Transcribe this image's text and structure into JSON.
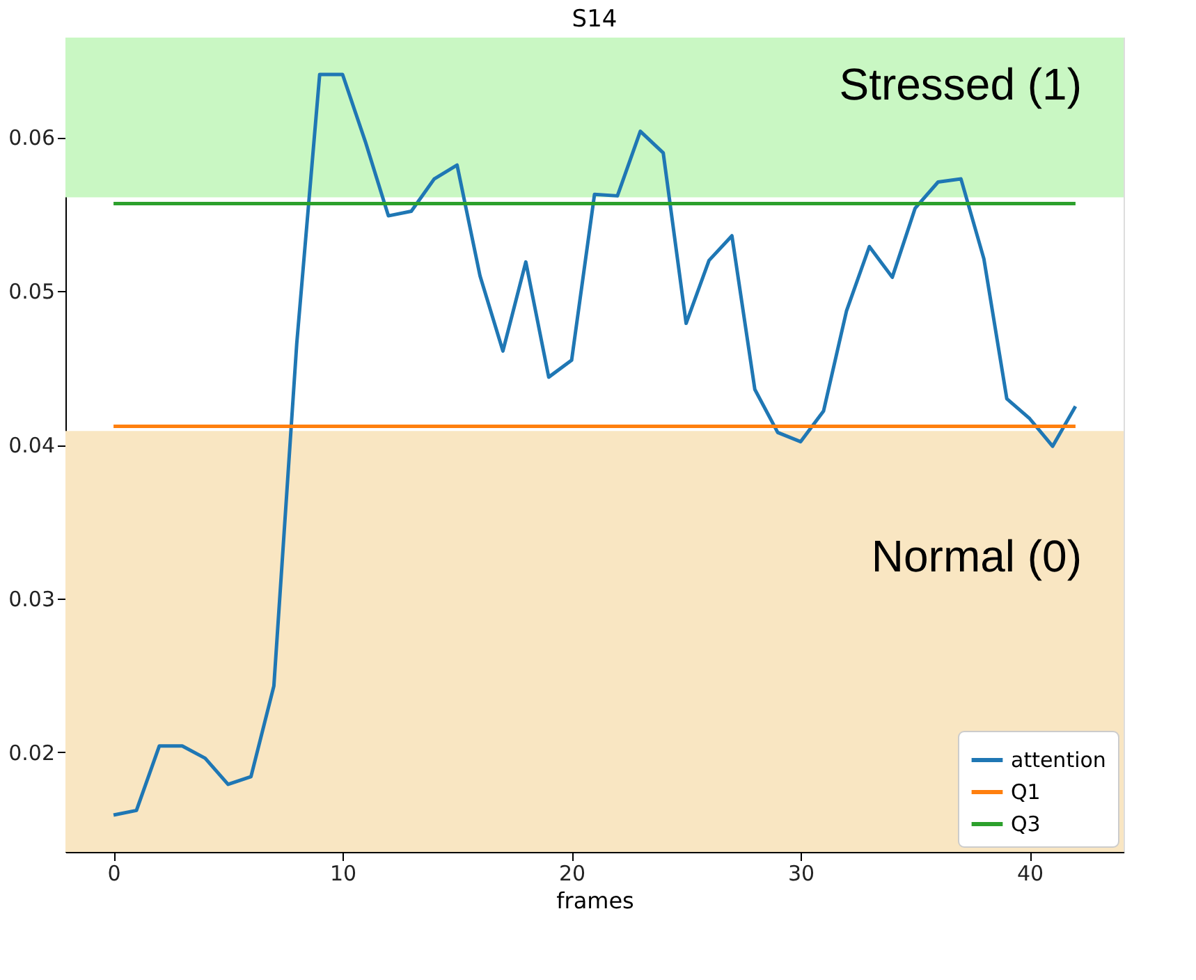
{
  "chart_data": {
    "type": "line",
    "title": "S14",
    "xlabel": "frames",
    "xlim": [
      -2.1,
      44.1
    ],
    "xticks": [
      0,
      10,
      20,
      30,
      40
    ],
    "ylim": [
      0.0135,
      0.0665
    ],
    "yticks": [
      0.02,
      0.03,
      0.04,
      0.05,
      0.06
    ],
    "grid": false,
    "legend": "bottom right",
    "marker": "none",
    "line_style": "solid",
    "series": [
      {
        "name": "attention",
        "color": "#1f77b4",
        "x": [
          0,
          1,
          2,
          3,
          4,
          5,
          6,
          7,
          8,
          9,
          10,
          11,
          12,
          13,
          14,
          15,
          16,
          17,
          18,
          19,
          20,
          21,
          22,
          23,
          24,
          25,
          26,
          27,
          28,
          29,
          30,
          31,
          32,
          33,
          34,
          35,
          36,
          37,
          38,
          39,
          40,
          41,
          42
        ],
        "values": [
          0.0159,
          0.0162,
          0.0204,
          0.0204,
          0.0196,
          0.0179,
          0.0184,
          0.0243,
          0.0466,
          0.0641,
          0.0641,
          0.0597,
          0.0549,
          0.0552,
          0.0573,
          0.0582,
          0.051,
          0.0461,
          0.0519,
          0.0444,
          0.0455,
          0.0563,
          0.0562,
          0.0604,
          0.059,
          0.0479,
          0.052,
          0.0536,
          0.0436,
          0.0408,
          0.0402,
          0.0422,
          0.0487,
          0.0529,
          0.0509,
          0.0554,
          0.0571,
          0.0573,
          0.0521,
          0.043,
          0.0417,
          0.0399,
          0.0425
        ]
      },
      {
        "name": "Q1",
        "color": "#ff7f0e",
        "x": [
          0,
          42
        ],
        "values": [
          0.0412,
          0.0412
        ]
      },
      {
        "name": "Q3",
        "color": "#2ca02c",
        "x": [
          0,
          42
        ],
        "values": [
          0.0557,
          0.0557
        ]
      }
    ],
    "bands": [
      {
        "axis": "y",
        "from": 0.0561,
        "to": 0.0665,
        "label": "Stressed (1)",
        "color": "#c9f7c3"
      },
      {
        "axis": "y",
        "from": 0.0135,
        "to": 0.0409,
        "label": "Normal (0)",
        "color": "#f9e6c2"
      }
    ]
  }
}
